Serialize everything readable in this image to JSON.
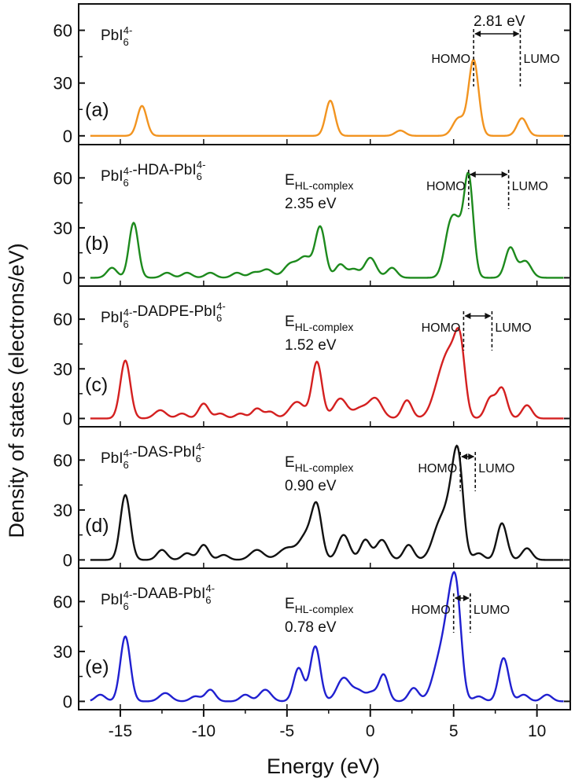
{
  "chart_data": {
    "type": "line",
    "xlabel": "Energy (eV)",
    "ylabel": "Density of states (electrons/eV)",
    "xlim": [
      -17.5,
      12
    ],
    "x_ticks": [
      -15,
      -10,
      -5,
      0,
      5,
      10
    ],
    "x_tick_labels": [
      "-15",
      "-10",
      "-5",
      "0",
      "5",
      "10"
    ],
    "panels": [
      {
        "id": "a",
        "letter": "(a)",
        "name_base": "PbI",
        "name_sub": "6",
        "name_sup": "4-",
        "name_suffix": "",
        "color": "#f29420",
        "ylim": [
          -5,
          75
        ],
        "y_ticks": [
          0,
          30,
          60
        ],
        "y_tick_labels": [
          "0",
          "30",
          "60"
        ],
        "gap_value": "2.81 eV",
        "gap_label_base": "",
        "gap_label_sub": "",
        "homo_label": "HOMO",
        "lumo_label": "LUMO",
        "homo_x": 6.2,
        "lumo_x": 9.0,
        "peaks": [
          [
            -13.7,
            17,
            0.28
          ],
          [
            -2.4,
            20,
            0.28
          ],
          [
            1.8,
            3,
            0.3
          ],
          [
            5.3,
            10,
            0.35
          ],
          [
            6.2,
            43,
            0.3
          ],
          [
            9.1,
            10,
            0.3
          ]
        ]
      },
      {
        "id": "b",
        "letter": "(b)",
        "name_base": "PbI",
        "name_sub": "6",
        "name_sup": "4-",
        "name_suffix": "-HDA-",
        "color": "#1d8a1d",
        "ylim": [
          -5,
          80
        ],
        "y_ticks": [
          0,
          30,
          60
        ],
        "y_tick_labels": [
          "0",
          "30",
          "60"
        ],
        "gap_value": "2.35 eV",
        "gap_label_base": "E",
        "gap_label_sub": "HL-complex",
        "homo_label": "HOMO",
        "lumo_label": "LUMO",
        "homo_x": 5.9,
        "lumo_x": 8.3,
        "peaks": [
          [
            -15.5,
            6,
            0.3
          ],
          [
            -14.2,
            33,
            0.28
          ],
          [
            -12.2,
            3,
            0.3
          ],
          [
            -11.0,
            3,
            0.3
          ],
          [
            -9.6,
            3,
            0.3
          ],
          [
            -8.0,
            3,
            0.3
          ],
          [
            -7.0,
            3,
            0.3
          ],
          [
            -6.2,
            5,
            0.35
          ],
          [
            -4.8,
            8,
            0.4
          ],
          [
            -3.9,
            12,
            0.4
          ],
          [
            -3.0,
            30,
            0.3
          ],
          [
            -1.8,
            8,
            0.3
          ],
          [
            -1.0,
            5,
            0.3
          ],
          [
            0.0,
            12,
            0.35
          ],
          [
            1.3,
            6,
            0.3
          ],
          [
            4.8,
            30,
            0.35
          ],
          [
            5.3,
            20,
            0.3
          ],
          [
            5.9,
            60,
            0.28
          ],
          [
            8.4,
            18,
            0.3
          ],
          [
            9.3,
            10,
            0.35
          ]
        ]
      },
      {
        "id": "c",
        "letter": "(c)",
        "name_base": "PbI",
        "name_sub": "6",
        "name_sup": "4-",
        "name_suffix": "-DADPE-",
        "color": "#d42020",
        "ylim": [
          -5,
          80
        ],
        "y_ticks": [
          0,
          30,
          60
        ],
        "y_tick_labels": [
          "0",
          "30",
          "60"
        ],
        "gap_value": "1.52 eV",
        "gap_label_base": "E",
        "gap_label_sub": "HL-complex",
        "homo_label": "HOMO",
        "lumo_label": "LUMO",
        "homo_x": 5.6,
        "lumo_x": 7.3,
        "peaks": [
          [
            -14.7,
            35,
            0.3
          ],
          [
            -12.6,
            5,
            0.35
          ],
          [
            -11.3,
            3,
            0.3
          ],
          [
            -10.0,
            9,
            0.3
          ],
          [
            -9.0,
            3,
            0.3
          ],
          [
            -7.8,
            3,
            0.3
          ],
          [
            -6.8,
            6,
            0.3
          ],
          [
            -6.0,
            4,
            0.3
          ],
          [
            -4.4,
            10,
            0.45
          ],
          [
            -3.2,
            34,
            0.3
          ],
          [
            -1.8,
            12,
            0.4
          ],
          [
            -0.6,
            6,
            0.4
          ],
          [
            0.3,
            12,
            0.4
          ],
          [
            2.2,
            11,
            0.3
          ],
          [
            4.3,
            25,
            0.5
          ],
          [
            4.9,
            25,
            0.4
          ],
          [
            5.4,
            38,
            0.3
          ],
          [
            7.2,
            12,
            0.3
          ],
          [
            7.9,
            18,
            0.3
          ],
          [
            9.4,
            8,
            0.3
          ]
        ]
      },
      {
        "id": "d",
        "letter": "(d)",
        "name_base": "PbI",
        "name_sub": "6",
        "name_sup": "4-",
        "name_suffix": "-DAS-",
        "color": "#111111",
        "ylim": [
          -5,
          80
        ],
        "y_ticks": [
          0,
          30,
          60
        ],
        "y_tick_labels": [
          "0",
          "30",
          "60"
        ],
        "gap_value": "0.90 eV",
        "gap_label_base": "E",
        "gap_label_sub": "HL-complex",
        "homo_label": "HOMO",
        "lumo_label": "LUMO",
        "homo_x": 5.4,
        "lumo_x": 6.3,
        "peaks": [
          [
            -14.7,
            39,
            0.3
          ],
          [
            -12.5,
            6,
            0.3
          ],
          [
            -11.0,
            4,
            0.3
          ],
          [
            -10.0,
            9,
            0.3
          ],
          [
            -8.8,
            3,
            0.3
          ],
          [
            -6.8,
            6,
            0.4
          ],
          [
            -5.0,
            7,
            0.5
          ],
          [
            -3.8,
            15,
            0.45
          ],
          [
            -3.2,
            28,
            0.3
          ],
          [
            -1.6,
            15,
            0.35
          ],
          [
            -0.3,
            12,
            0.3
          ],
          [
            0.7,
            12,
            0.35
          ],
          [
            2.3,
            9,
            0.3
          ],
          [
            4.2,
            22,
            0.45
          ],
          [
            4.9,
            28,
            0.35
          ],
          [
            5.3,
            50,
            0.3
          ],
          [
            6.5,
            4,
            0.3
          ],
          [
            7.9,
            22,
            0.3
          ],
          [
            9.4,
            7,
            0.3
          ]
        ]
      },
      {
        "id": "e",
        "letter": "(e)",
        "name_base": "PbI",
        "name_sub": "6",
        "name_sup": "4-",
        "name_suffix": "-DAAB-",
        "color": "#2020d0",
        "ylim": [
          -5,
          80
        ],
        "y_ticks": [
          0,
          30,
          60
        ],
        "y_tick_labels": [
          "0",
          "30",
          "60"
        ],
        "gap_value": "0.78 eV",
        "gap_label_base": "E",
        "gap_label_sub": "HL-complex",
        "homo_label": "HOMO",
        "lumo_label": "LUMO",
        "homo_x": 5.0,
        "lumo_x": 6.0,
        "peaks": [
          [
            -16.2,
            4,
            0.3
          ],
          [
            -14.7,
            39,
            0.3
          ],
          [
            -12.3,
            5,
            0.35
          ],
          [
            -10.5,
            3,
            0.3
          ],
          [
            -9.6,
            7,
            0.3
          ],
          [
            -7.5,
            4,
            0.3
          ],
          [
            -6.3,
            7,
            0.35
          ],
          [
            -4.3,
            20,
            0.3
          ],
          [
            -3.3,
            33,
            0.3
          ],
          [
            -1.6,
            14,
            0.4
          ],
          [
            -0.7,
            6,
            0.35
          ],
          [
            0.1,
            5,
            0.3
          ],
          [
            0.8,
            16,
            0.28
          ],
          [
            2.6,
            8,
            0.3
          ],
          [
            4.2,
            25,
            0.45
          ],
          [
            4.8,
            40,
            0.35
          ],
          [
            5.2,
            48,
            0.3
          ],
          [
            6.5,
            3,
            0.3
          ],
          [
            8.0,
            26,
            0.3
          ],
          [
            9.2,
            4,
            0.3
          ],
          [
            10.6,
            4,
            0.3
          ]
        ]
      }
    ]
  }
}
